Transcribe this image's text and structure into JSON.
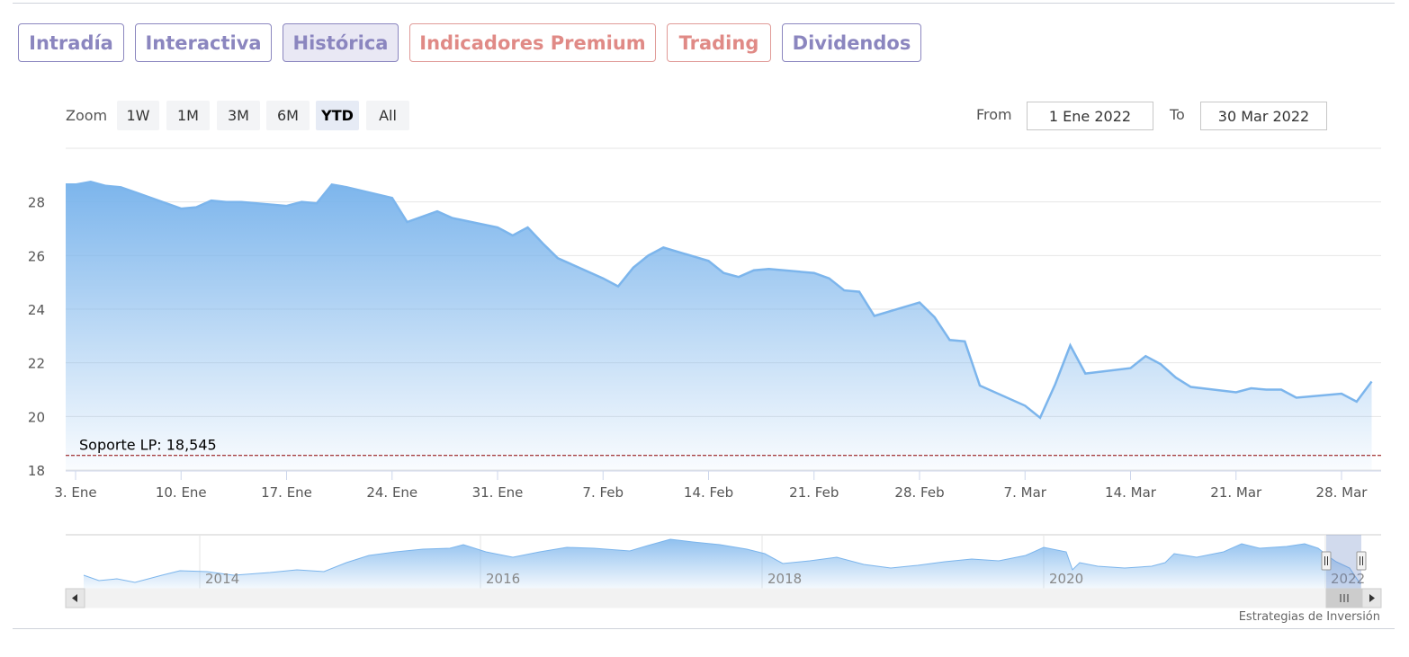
{
  "tabs": [
    {
      "label": "Intradía",
      "style": "purple",
      "active": false
    },
    {
      "label": "Interactiva",
      "style": "purple",
      "active": false
    },
    {
      "label": "Histórica",
      "style": "purple",
      "active": true
    },
    {
      "label": "Indicadores Premium",
      "style": "red",
      "active": false
    },
    {
      "label": "Trading",
      "style": "red",
      "active": false
    },
    {
      "label": "Dividendos",
      "style": "purple",
      "active": false
    }
  ],
  "zoom": {
    "label": "Zoom",
    "buttons": [
      "1W",
      "1M",
      "3M",
      "6M",
      "YTD",
      "All"
    ],
    "selected": "YTD"
  },
  "range": {
    "from_label": "From",
    "from_value": "1 Ene 2022",
    "to_label": "To",
    "to_value": "30 Mar 2022"
  },
  "colors": {
    "series_line": "#7cb5ec",
    "support_line": "#8b0000",
    "tab_purple": "#8b86bf",
    "tab_red": "#e08a86"
  },
  "chart_data": {
    "type": "area",
    "x_tick_labels": [
      "3. Ene",
      "10. Ene",
      "17. Ene",
      "24. Ene",
      "31. Ene",
      "7. Feb",
      "14. Feb",
      "21. Feb",
      "28. Feb",
      "7. Mar",
      "14. Mar",
      "21. Mar",
      "28. Mar"
    ],
    "x": [
      "2022-01-03",
      "2022-01-04",
      "2022-01-05",
      "2022-01-06",
      "2022-01-07",
      "2022-01-10",
      "2022-01-11",
      "2022-01-12",
      "2022-01-13",
      "2022-01-14",
      "2022-01-17",
      "2022-01-18",
      "2022-01-19",
      "2022-01-20",
      "2022-01-21",
      "2022-01-24",
      "2022-01-25",
      "2022-01-26",
      "2022-01-27",
      "2022-01-28",
      "2022-01-31",
      "2022-02-01",
      "2022-02-02",
      "2022-02-03",
      "2022-02-04",
      "2022-02-07",
      "2022-02-08",
      "2022-02-09",
      "2022-02-10",
      "2022-02-11",
      "2022-02-14",
      "2022-02-15",
      "2022-02-16",
      "2022-02-17",
      "2022-02-18",
      "2022-02-21",
      "2022-02-22",
      "2022-02-23",
      "2022-02-24",
      "2022-02-25",
      "2022-02-28",
      "2022-03-01",
      "2022-03-02",
      "2022-03-03",
      "2022-03-04",
      "2022-03-07",
      "2022-03-08",
      "2022-03-09",
      "2022-03-10",
      "2022-03-11",
      "2022-03-14",
      "2022-03-15",
      "2022-03-16",
      "2022-03-17",
      "2022-03-18",
      "2022-03-21",
      "2022-03-22",
      "2022-03-23",
      "2022-03-24",
      "2022-03-25",
      "2022-03-28",
      "2022-03-29",
      "2022-03-30"
    ],
    "values": [
      28.65,
      28.75,
      28.6,
      28.55,
      28.35,
      27.75,
      27.8,
      28.05,
      28.0,
      28.0,
      27.85,
      28.0,
      27.95,
      28.65,
      28.55,
      28.15,
      27.25,
      27.45,
      27.65,
      27.4,
      27.05,
      26.75,
      27.05,
      26.45,
      25.9,
      25.15,
      24.85,
      25.55,
      26.0,
      26.3,
      25.8,
      25.35,
      25.2,
      25.45,
      25.5,
      25.35,
      25.15,
      24.7,
      24.65,
      23.75,
      24.25,
      23.7,
      22.85,
      22.8,
      21.15,
      20.4,
      19.95,
      21.2,
      22.65,
      21.6,
      21.8,
      22.25,
      21.95,
      21.45,
      21.1,
      20.9,
      21.05,
      21.0,
      21.0,
      20.7,
      20.85,
      20.55,
      21.3
    ],
    "y_tick_labels": [
      "18",
      "20",
      "22",
      "24",
      "26",
      "28"
    ],
    "ylim": [
      18,
      30
    ],
    "grid": true,
    "annotation": {
      "label": "Soporte LP: 18,545",
      "value": 18.545
    },
    "navigator": {
      "tick_labels": [
        "2014",
        "2016",
        "2018",
        "2020",
        "2022"
      ]
    }
  },
  "credit": "Estrategias de Inversión"
}
